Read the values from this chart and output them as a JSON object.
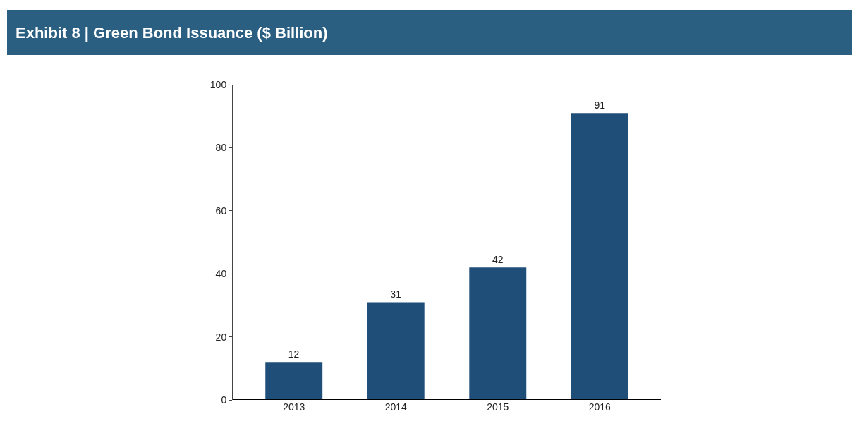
{
  "chart_data": {
    "type": "bar",
    "title": "Exhibit 8 | Green Bond Issuance ($ Billion)",
    "categories": [
      "2013",
      "2014",
      "2015",
      "2016"
    ],
    "values": [
      12,
      31,
      42,
      91
    ],
    "color": "#1f4e79",
    "ylim": [
      0,
      100
    ],
    "yticks": [
      0,
      20,
      40,
      60,
      80,
      100
    ],
    "data_labels": true
  }
}
